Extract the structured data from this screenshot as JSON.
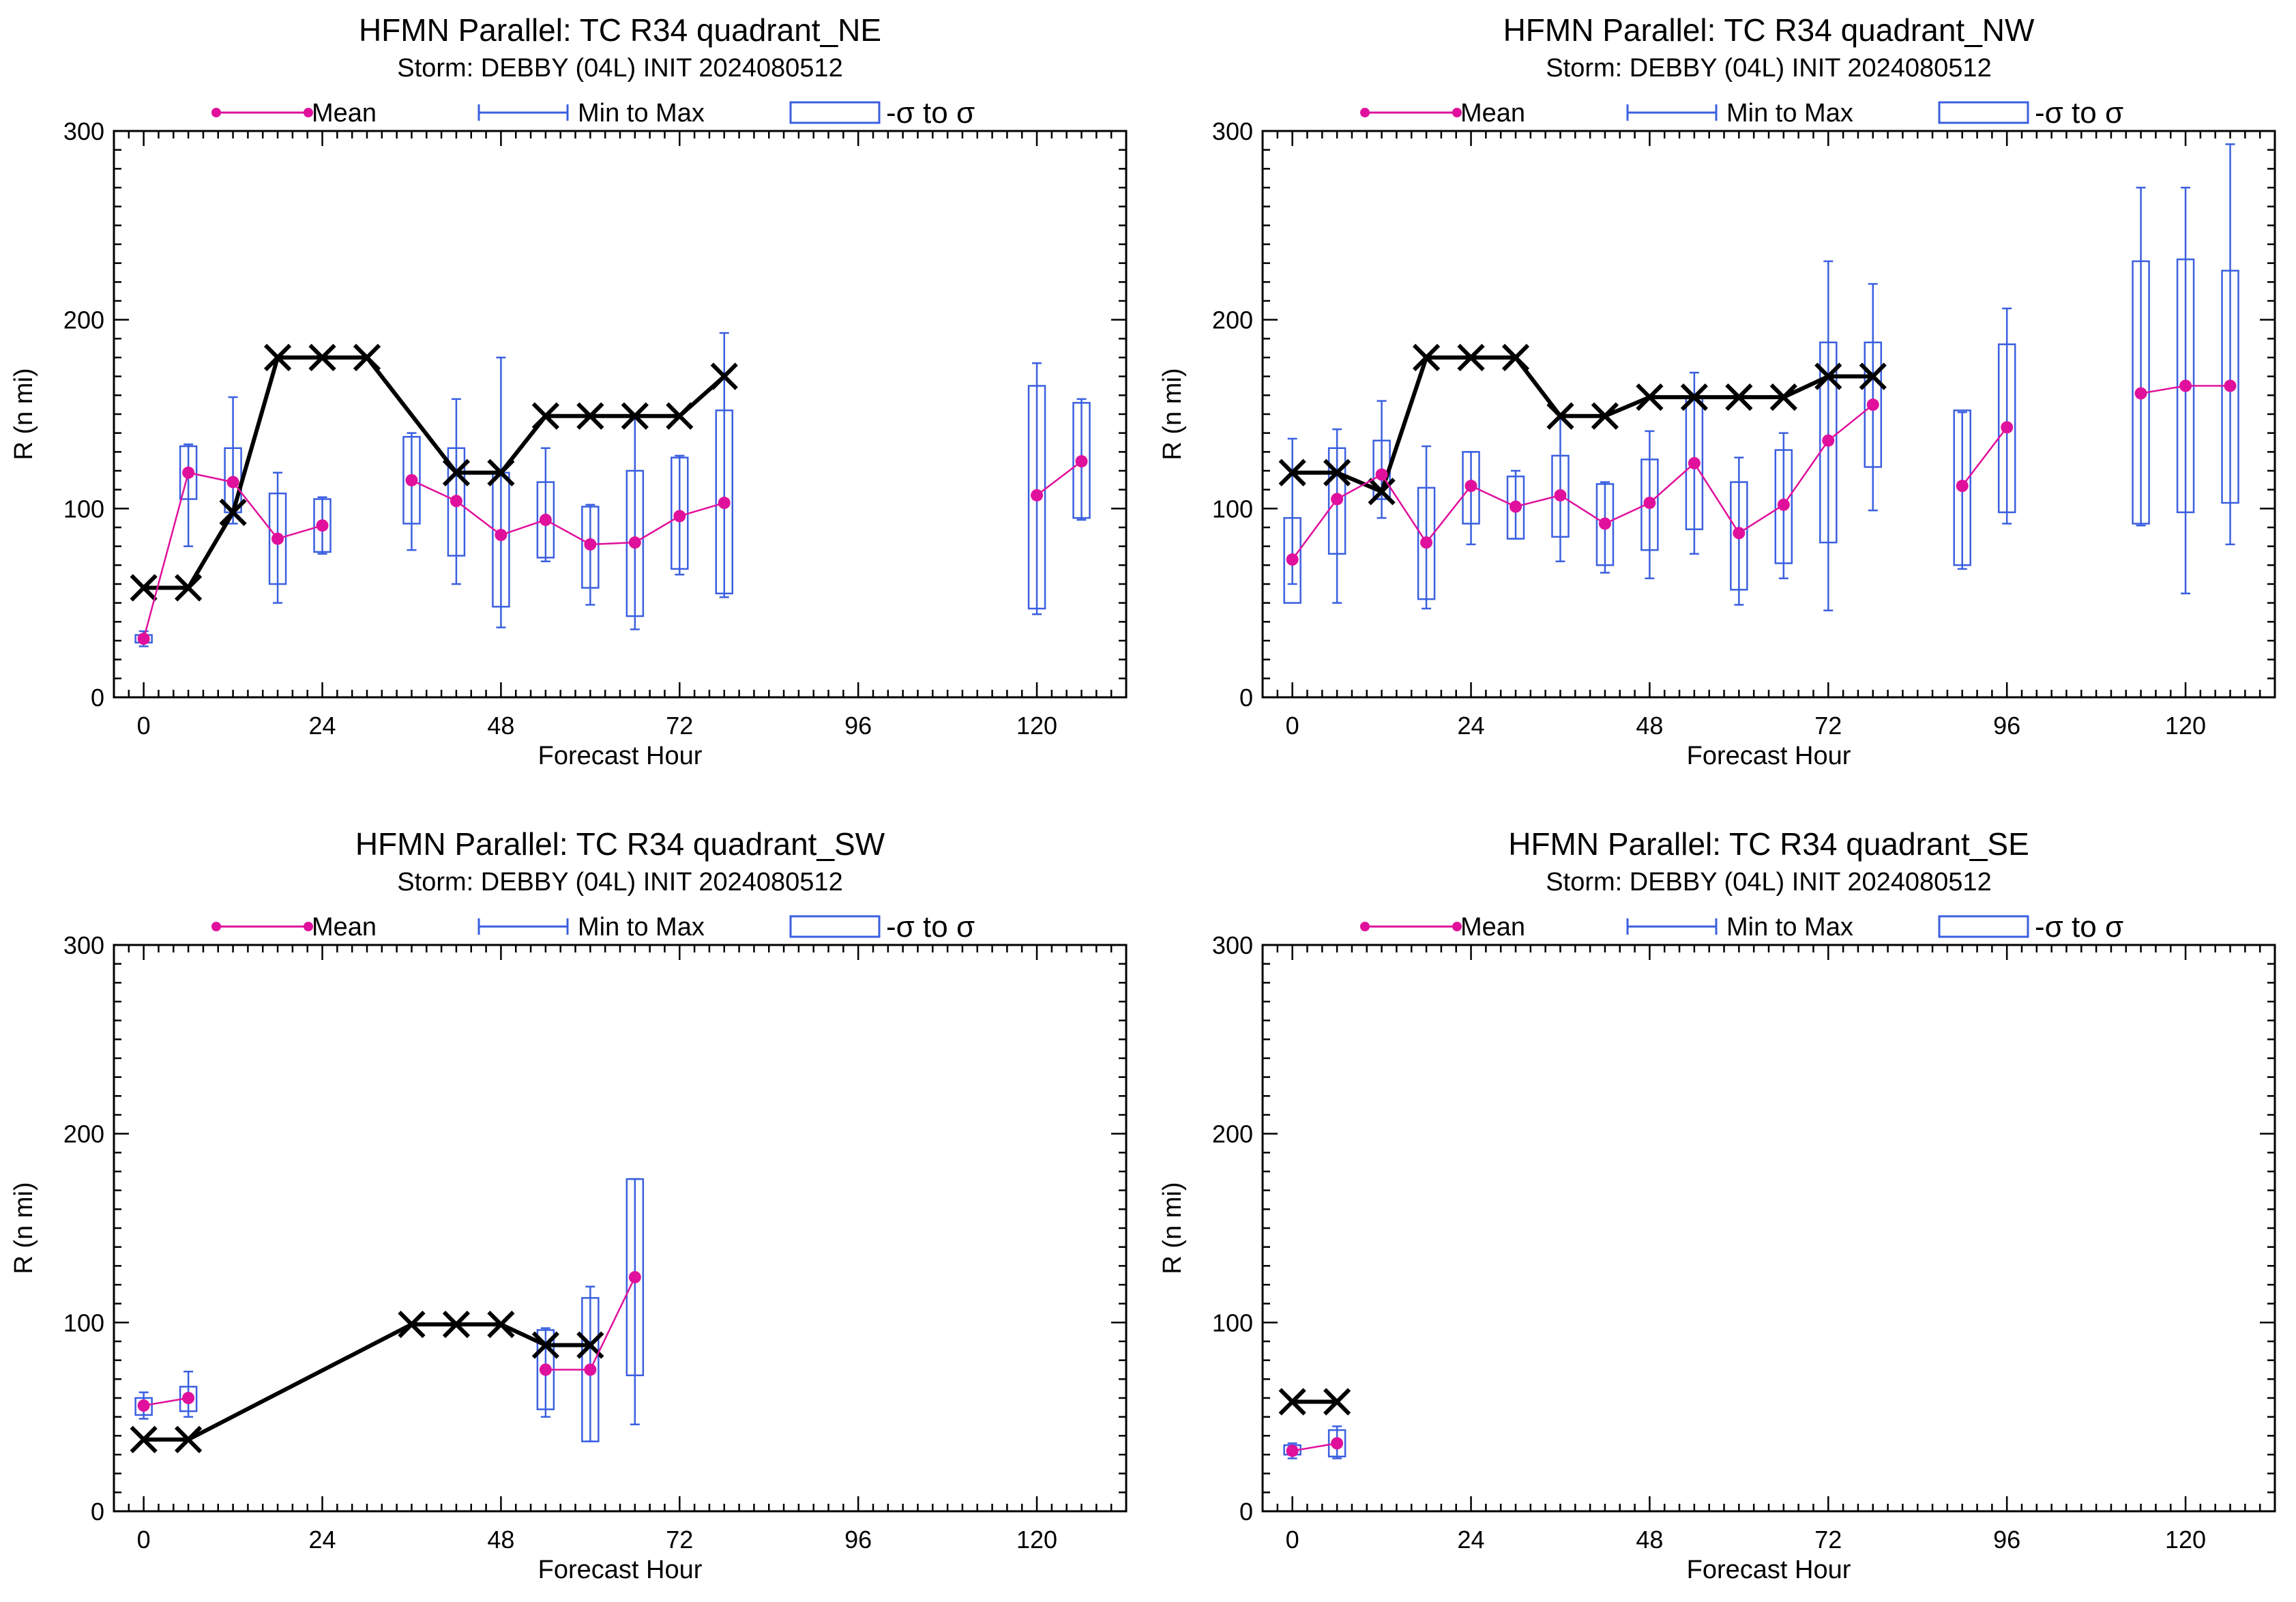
{
  "figure": {
    "legend": {
      "mean": "Mean",
      "minmax": "Min to Max",
      "sigma": "-σ to σ"
    },
    "colors": {
      "mean": "#e0109c",
      "box": "#3a5fe0",
      "best_track": "#000000",
      "axes": "#000000"
    }
  },
  "chart_data": [
    {
      "type": "box",
      "title": "HFMN Parallel: TC  R34 quadrant_NE",
      "subtitle": "Storm: DEBBY (04L) INIT 2024080512",
      "xlabel": "Forecast Hour",
      "ylabel": "R (n mi)",
      "xlim": [
        -4,
        132
      ],
      "ylim": [
        0,
        300
      ],
      "xticks": [
        0,
        24,
        48,
        72,
        96,
        120
      ],
      "yticks": [
        0,
        100,
        200,
        300
      ],
      "grid": false,
      "legend_position": "top",
      "best_track": [
        [
          0,
          58
        ],
        [
          6,
          58
        ],
        [
          12,
          98
        ],
        [
          18,
          180
        ],
        [
          24,
          180
        ],
        [
          30,
          180
        ],
        [
          42,
          119
        ],
        [
          48,
          119
        ],
        [
          54,
          149
        ],
        [
          60,
          149
        ],
        [
          66,
          149
        ],
        [
          72,
          149
        ],
        [
          78,
          170
        ]
      ],
      "forecasts": [
        {
          "hour": 0,
          "mean": 31,
          "min": 27,
          "max": 35,
          "sd_lo": 29,
          "sd_hi": 33
        },
        {
          "hour": 6,
          "mean": 119,
          "min": 80,
          "max": 134,
          "sd_lo": 105,
          "sd_hi": 133
        },
        {
          "hour": 12,
          "mean": 114,
          "min": 92,
          "max": 159,
          "sd_lo": 98,
          "sd_hi": 132
        },
        {
          "hour": 18,
          "mean": 84,
          "min": 50,
          "max": 119,
          "sd_lo": 60,
          "sd_hi": 108
        },
        {
          "hour": 24,
          "mean": 91,
          "min": 76,
          "max": 106,
          "sd_lo": 77,
          "sd_hi": 105
        },
        {
          "hour": 36,
          "mean": 115,
          "min": 78,
          "max": 140,
          "sd_lo": 92,
          "sd_hi": 138
        },
        {
          "hour": 42,
          "mean": 104,
          "min": 60,
          "max": 158,
          "sd_lo": 75,
          "sd_hi": 132
        },
        {
          "hour": 48,
          "mean": 86,
          "min": 37,
          "max": 180,
          "sd_lo": 48,
          "sd_hi": 119
        },
        {
          "hour": 54,
          "mean": 94,
          "min": 72,
          "max": 132,
          "sd_lo": 74,
          "sd_hi": 114
        },
        {
          "hour": 60,
          "mean": 81,
          "min": 49,
          "max": 102,
          "sd_lo": 58,
          "sd_hi": 101
        },
        {
          "hour": 66,
          "mean": 82,
          "min": 36,
          "max": 150,
          "sd_lo": 43,
          "sd_hi": 120
        },
        {
          "hour": 72,
          "mean": 96,
          "min": 65,
          "max": 128,
          "sd_lo": 68,
          "sd_hi": 127
        },
        {
          "hour": 78,
          "mean": 103,
          "min": 53,
          "max": 193,
          "sd_lo": 55,
          "sd_hi": 152
        },
        {
          "hour": 120,
          "mean": 107,
          "min": 44,
          "max": 177,
          "sd_lo": 47,
          "sd_hi": 165
        },
        {
          "hour": 126,
          "mean": 125,
          "min": 94,
          "max": 158,
          "sd_lo": 95,
          "sd_hi": 156
        }
      ]
    },
    {
      "type": "box",
      "title": "HFMN Parallel: TC  R34 quadrant_NW",
      "subtitle": "Storm: DEBBY (04L) INIT 2024080512",
      "xlabel": "Forecast Hour",
      "ylabel": "R (n mi)",
      "xlim": [
        -4,
        132
      ],
      "ylim": [
        0,
        300
      ],
      "xticks": [
        0,
        24,
        48,
        72,
        96,
        120
      ],
      "yticks": [
        0,
        100,
        200,
        300
      ],
      "grid": false,
      "legend_position": "top",
      "best_track": [
        [
          0,
          119
        ],
        [
          6,
          119
        ],
        [
          12,
          109
        ],
        [
          18,
          180
        ],
        [
          24,
          180
        ],
        [
          30,
          180
        ],
        [
          36,
          149
        ],
        [
          42,
          149
        ],
        [
          48,
          159
        ],
        [
          54,
          159
        ],
        [
          60,
          159
        ],
        [
          66,
          159
        ],
        [
          72,
          170
        ],
        [
          78,
          170
        ]
      ],
      "forecasts": [
        {
          "hour": 0,
          "mean": 73,
          "min": 60,
          "max": 137,
          "sd_lo": 50,
          "sd_hi": 95
        },
        {
          "hour": 6,
          "mean": 105,
          "min": 50,
          "max": 142,
          "sd_lo": 76,
          "sd_hi": 132
        },
        {
          "hour": 12,
          "mean": 118,
          "min": 95,
          "max": 157,
          "sd_lo": 105,
          "sd_hi": 136
        },
        {
          "hour": 18,
          "mean": 82,
          "min": 47,
          "max": 133,
          "sd_lo": 52,
          "sd_hi": 111
        },
        {
          "hour": 24,
          "mean": 112,
          "min": 81,
          "max": 130,
          "sd_lo": 92,
          "sd_hi": 130
        },
        {
          "hour": 30,
          "mean": 101,
          "min": 84,
          "max": 120,
          "sd_lo": 84,
          "sd_hi": 117
        },
        {
          "hour": 36,
          "mean": 107,
          "min": 72,
          "max": 150,
          "sd_lo": 85,
          "sd_hi": 128
        },
        {
          "hour": 42,
          "mean": 92,
          "min": 66,
          "max": 114,
          "sd_lo": 70,
          "sd_hi": 113
        },
        {
          "hour": 48,
          "mean": 103,
          "min": 63,
          "max": 141,
          "sd_lo": 78,
          "sd_hi": 126
        },
        {
          "hour": 54,
          "mean": 124,
          "min": 76,
          "max": 172,
          "sd_lo": 89,
          "sd_hi": 159
        },
        {
          "hour": 60,
          "mean": 87,
          "min": 49,
          "max": 127,
          "sd_lo": 57,
          "sd_hi": 114
        },
        {
          "hour": 66,
          "mean": 102,
          "min": 63,
          "max": 140,
          "sd_lo": 71,
          "sd_hi": 131
        },
        {
          "hour": 72,
          "mean": 136,
          "min": 46,
          "max": 231,
          "sd_lo": 82,
          "sd_hi": 188
        },
        {
          "hour": 78,
          "mean": 155,
          "min": 99,
          "max": 219,
          "sd_lo": 122,
          "sd_hi": 188
        },
        {
          "hour": 90,
          "mean": 112,
          "min": 68,
          "max": 151,
          "sd_lo": 70,
          "sd_hi": 152
        },
        {
          "hour": 96,
          "mean": 143,
          "min": 92,
          "max": 206,
          "sd_lo": 98,
          "sd_hi": 187
        },
        {
          "hour": 114,
          "mean": 161,
          "min": 91,
          "max": 270,
          "sd_lo": 92,
          "sd_hi": 231
        },
        {
          "hour": 120,
          "mean": 165,
          "min": 55,
          "max": 270,
          "sd_lo": 98,
          "sd_hi": 232
        },
        {
          "hour": 126,
          "mean": 165,
          "min": 81,
          "max": 293,
          "sd_lo": 103,
          "sd_hi": 226
        }
      ]
    },
    {
      "type": "box",
      "title": "HFMN Parallel: TC  R34 quadrant_SW",
      "subtitle": "Storm: DEBBY (04L) INIT 2024080512",
      "xlabel": "Forecast Hour",
      "ylabel": "R (n mi)",
      "xlim": [
        -4,
        132
      ],
      "ylim": [
        0,
        300
      ],
      "xticks": [
        0,
        24,
        48,
        72,
        96,
        120
      ],
      "yticks": [
        0,
        100,
        200,
        300
      ],
      "grid": false,
      "legend_position": "top",
      "best_track": [
        [
          0,
          38
        ],
        [
          6,
          38
        ],
        [
          36,
          99
        ],
        [
          42,
          99
        ],
        [
          48,
          99
        ],
        [
          54,
          88
        ],
        [
          60,
          88
        ]
      ],
      "forecasts": [
        {
          "hour": 0,
          "mean": 56,
          "min": 49,
          "max": 63,
          "sd_lo": 51,
          "sd_hi": 60
        },
        {
          "hour": 6,
          "mean": 60,
          "min": 50,
          "max": 74,
          "sd_lo": 53,
          "sd_hi": 66
        },
        {
          "hour": 54,
          "mean": 75,
          "min": 50,
          "max": 97,
          "sd_lo": 54,
          "sd_hi": 96
        },
        {
          "hour": 60,
          "mean": 75,
          "min": 37,
          "max": 119,
          "sd_lo": 37,
          "sd_hi": 113
        },
        {
          "hour": 66,
          "mean": 124,
          "min": 46,
          "max": 176,
          "sd_lo": 72,
          "sd_hi": 176
        }
      ]
    },
    {
      "type": "box",
      "title": "HFMN Parallel: TC  R34 quadrant_SE",
      "subtitle": "Storm: DEBBY (04L) INIT 2024080512",
      "xlabel": "Forecast Hour",
      "ylabel": "R (n mi)",
      "xlim": [
        -4,
        132
      ],
      "ylim": [
        0,
        300
      ],
      "xticks": [
        0,
        24,
        48,
        72,
        96,
        120
      ],
      "yticks": [
        0,
        100,
        200,
        300
      ],
      "grid": false,
      "legend_position": "top",
      "best_track": [
        [
          0,
          58
        ],
        [
          6,
          58
        ]
      ],
      "forecasts": [
        {
          "hour": 0,
          "mean": 32,
          "min": 28,
          "max": 36,
          "sd_lo": 30,
          "sd_hi": 35
        },
        {
          "hour": 6,
          "mean": 36,
          "min": 28,
          "max": 45,
          "sd_lo": 29,
          "sd_hi": 43
        }
      ]
    }
  ]
}
